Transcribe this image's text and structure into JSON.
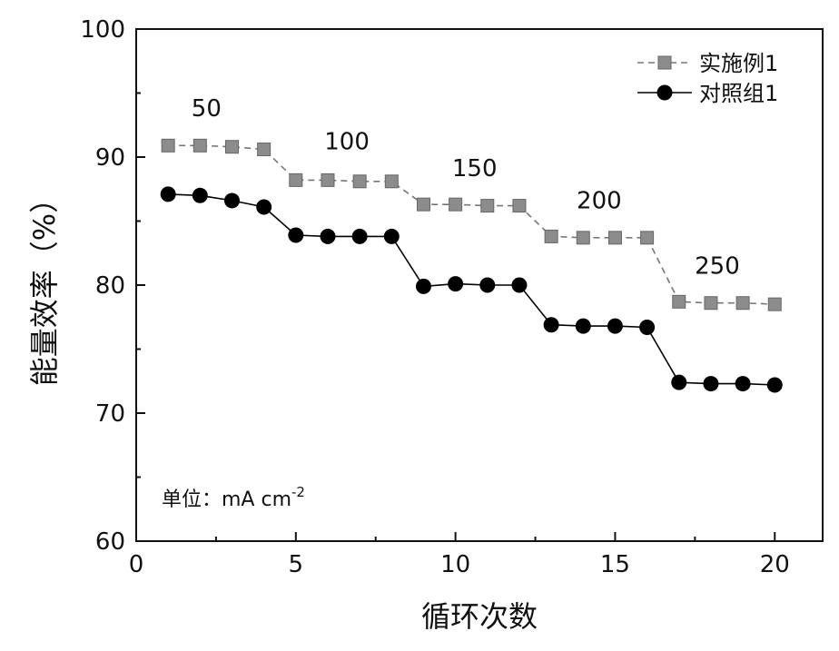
{
  "chart_data": {
    "type": "line",
    "xlabel": "循环次数",
    "ylabel": "能量效率（%）",
    "xlim": [
      0,
      21.5
    ],
    "ylim": [
      60,
      100
    ],
    "xticks": [
      "0",
      "5",
      "10",
      "15",
      "20"
    ],
    "yticks": [
      "60",
      "70",
      "80",
      "90",
      "100"
    ],
    "x": [
      1,
      2,
      3,
      4,
      5,
      6,
      7,
      8,
      9,
      10,
      11,
      12,
      13,
      14,
      15,
      16,
      17,
      18,
      19,
      20
    ],
    "series": [
      {
        "name": "实施例1",
        "marker": "square",
        "color": "#8c8c8c",
        "values": [
          90.9,
          90.9,
          90.8,
          90.6,
          88.2,
          88.2,
          88.1,
          88.1,
          86.3,
          86.3,
          86.2,
          86.2,
          83.8,
          83.7,
          83.7,
          83.7,
          78.7,
          78.6,
          78.6,
          78.5
        ]
      },
      {
        "name": "对照组1",
        "marker": "circle",
        "color": "#000000",
        "values": [
          87.1,
          87.0,
          86.6,
          86.1,
          83.9,
          83.8,
          83.8,
          83.8,
          79.9,
          80.1,
          80.0,
          80.0,
          76.9,
          76.8,
          76.8,
          76.7,
          72.4,
          72.3,
          72.3,
          72.2
        ]
      }
    ],
    "annotations": [
      {
        "text": "50",
        "x": 2.2,
        "y": 93.2
      },
      {
        "text": "100",
        "x": 6.6,
        "y": 90.6
      },
      {
        "text": "150",
        "x": 10.6,
        "y": 88.5
      },
      {
        "text": "200",
        "x": 14.5,
        "y": 86.0
      },
      {
        "text": "250",
        "x": 18.2,
        "y": 80.9
      }
    ],
    "unit_note": {
      "text": "单位：mA cm",
      "sup": "-2"
    },
    "legend_position": "top-right",
    "grid": false
  }
}
